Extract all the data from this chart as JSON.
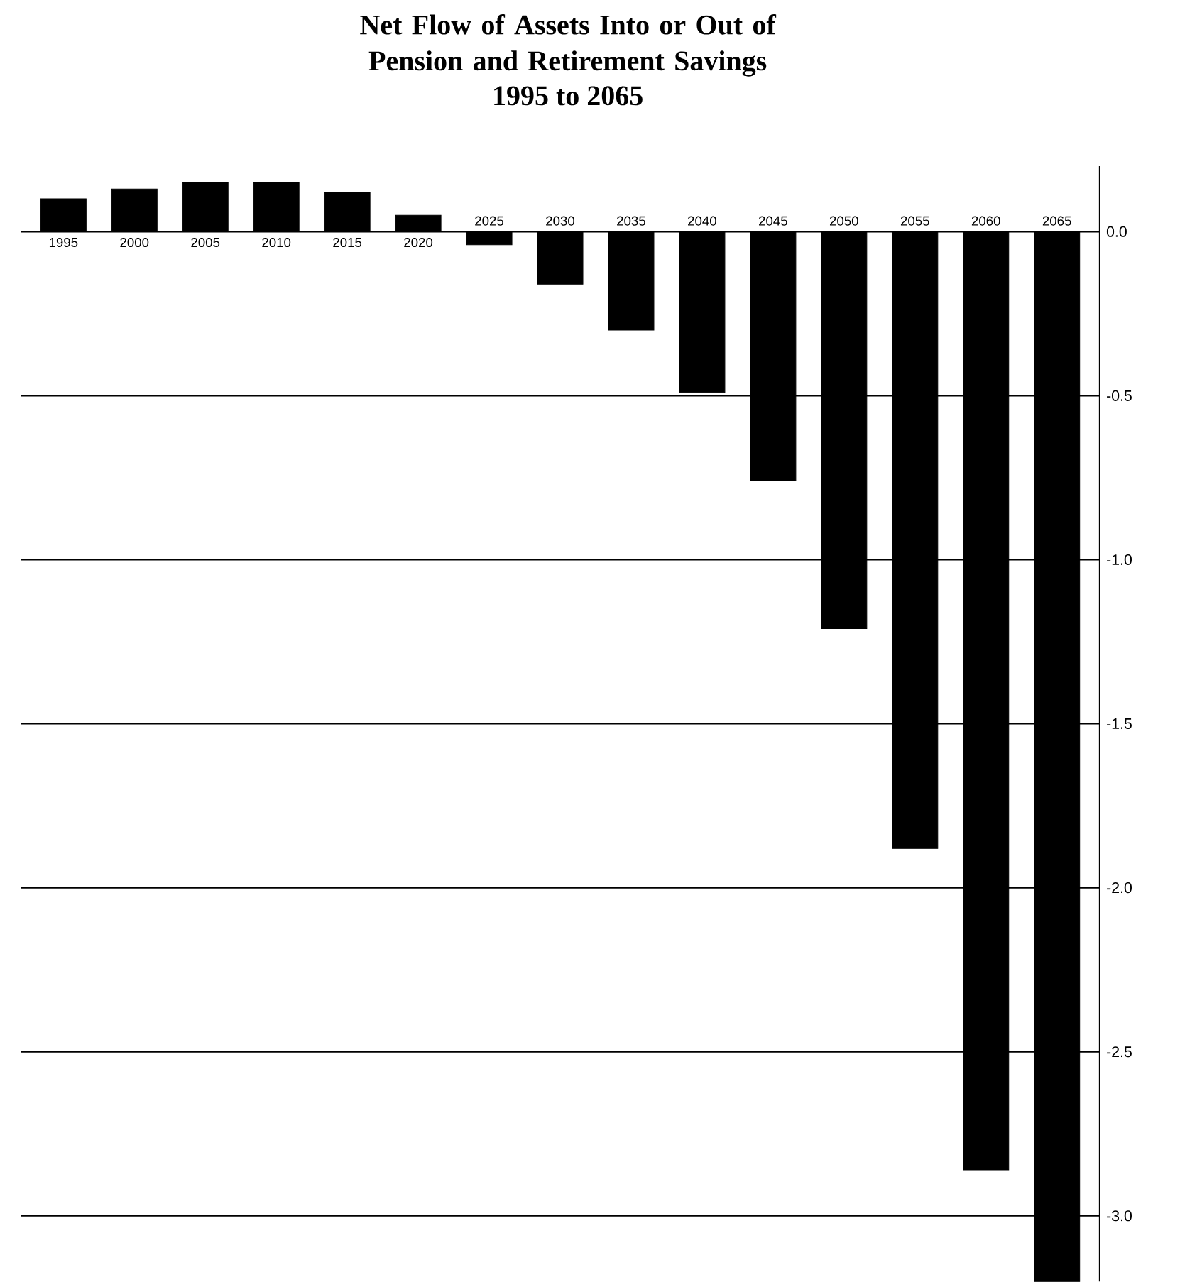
{
  "chart_data": {
    "type": "bar",
    "title": "Net Flow of Assets Into or Out of Pension and Retirement Savings",
    "subtitle": "1995 to 2065",
    "categories": [
      "1995",
      "2000",
      "2005",
      "2010",
      "2015",
      "2020",
      "2025",
      "2030",
      "2035",
      "2040",
      "2045",
      "2050",
      "2055",
      "2060",
      "2065"
    ],
    "values": [
      0.1,
      0.13,
      0.15,
      0.15,
      0.12,
      0.05,
      -0.04,
      -0.16,
      -0.3,
      -0.49,
      -0.76,
      -1.21,
      -1.88,
      -2.86,
      -3.2
    ],
    "color": "#000000",
    "ylim": [
      -3.2,
      0.2
    ],
    "yticks": [
      {
        "value": 0,
        "label": "0.0"
      },
      {
        "value": -0.5,
        "label": "-0.5"
      },
      {
        "value": -1,
        "label": "-1.0"
      },
      {
        "value": -1.5,
        "label": "-1.5"
      },
      {
        "value": -2,
        "label": "-2.0"
      },
      {
        "value": -2.5,
        "label": "-2.5"
      },
      {
        "value": -3,
        "label": "-3.0"
      }
    ],
    "grid": "y"
  }
}
